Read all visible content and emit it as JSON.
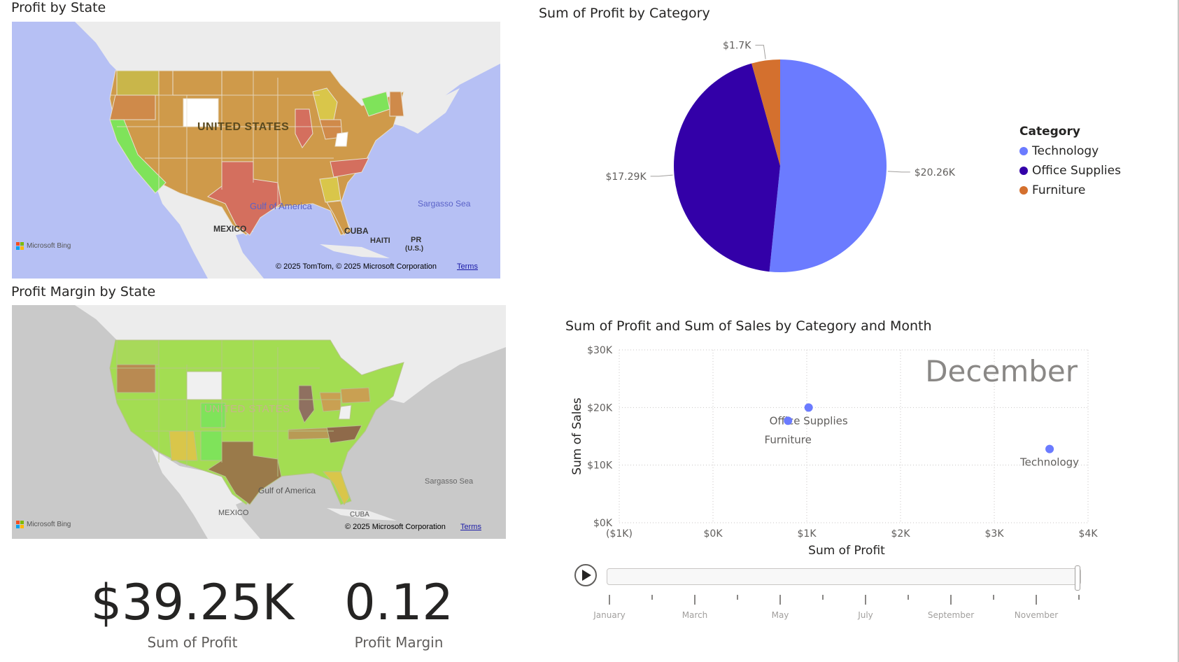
{
  "maps": {
    "profit_by_state": {
      "title": "Profit by State",
      "country_label": "UNITED STATES",
      "labels": {
        "gulf": "Gulf of America",
        "sargasso": "Sargasso Sea",
        "mexico": "MEXICO",
        "cuba": "CUBA",
        "haiti": "HAITI",
        "pr": "PR",
        "us_paren": "(U.S.)"
      },
      "bing_label": "Microsoft Bing",
      "copyright": "© 2025 TomTom, © 2025 Microsoft Corporation",
      "terms": "Terms"
    },
    "profit_margin_by_state": {
      "title": "Profit Margin by State",
      "country_label": "UNITED STATES",
      "labels": {
        "gulf": "Gulf of America",
        "sargasso": "Sargasso Sea",
        "mexico": "MEXICO",
        "cuba": "CUBA"
      },
      "bing_label": "Microsoft Bing",
      "copyright": "© 2025 Microsoft Corporation",
      "terms": "Terms"
    }
  },
  "cards": [
    {
      "value": "$39.25K",
      "label": "Sum of Profit"
    },
    {
      "value": "0.12",
      "label": "Profit Margin"
    }
  ],
  "colors": {
    "technology": "#6b7bff",
    "office_supplies": "#3300a8",
    "furniture": "#d4702e",
    "map_water_1": "#b6c0f4",
    "map_water_2": "#c9c9c9",
    "state_orange": "#cf9a4a",
    "state_green": "#7fe35a",
    "state_red": "#d46f5e"
  },
  "legend": {
    "title": "Category",
    "items": [
      {
        "label": "Technology",
        "color": "#6b7bff"
      },
      {
        "label": "Office Supplies",
        "color": "#3300a8"
      },
      {
        "label": "Furniture",
        "color": "#d4702e"
      }
    ]
  },
  "chart_data": [
    {
      "type": "pie",
      "title": "Sum of Profit by Category",
      "categories": [
        "Technology",
        "Office Supplies",
        "Furniture"
      ],
      "values": [
        20.26,
        17.29,
        1.7
      ],
      "unit": "$K",
      "data_labels": [
        "$20.26K",
        "$17.29K",
        "$1.7K"
      ],
      "legend_title": "Category",
      "legend_position": "right"
    },
    {
      "type": "scatter",
      "title": "Sum of Profit and Sum of Sales by Category and Month",
      "xlabel": "Sum of Profit",
      "ylabel": "Sum of Sales",
      "xlim": [
        -1000,
        4000
      ],
      "ylim": [
        0,
        30000
      ],
      "x_ticks": [
        "($1K)",
        "$0K",
        "$1K",
        "$2K",
        "$3K",
        "$4K"
      ],
      "y_ticks": [
        "$0K",
        "$10K",
        "$20K",
        "$30K"
      ],
      "grid": true,
      "play_axis_value": "December",
      "points": [
        {
          "label": "Office Supplies",
          "x": 1020,
          "y": 20000
        },
        {
          "label": "Furniture",
          "x": 800,
          "y": 17700
        },
        {
          "label": "Technology",
          "x": 3590,
          "y": 12800
        }
      ]
    }
  ],
  "play_axis": {
    "months": [
      "January",
      "March",
      "May",
      "July",
      "September",
      "November"
    ],
    "current": "December"
  }
}
